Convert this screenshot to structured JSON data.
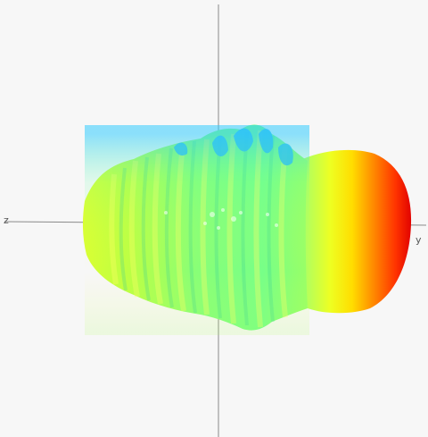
{
  "view": {
    "background": "#f7f7f7",
    "axis_color": "#888888"
  },
  "axes": {
    "x_left_label": "z",
    "x_right_label": "y",
    "y_top_label": "",
    "y_bottom_label": ""
  },
  "surface": {
    "description_colors": [
      "#ff0000",
      "#ff8800",
      "#ffff00",
      "#ccff33",
      "#66ff99",
      "#33ccff",
      "#0099ee"
    ],
    "main_lobe_color": "#ff1a00",
    "side_lobe_color": "#99ff66",
    "highlight_color": "#29b6f6"
  }
}
